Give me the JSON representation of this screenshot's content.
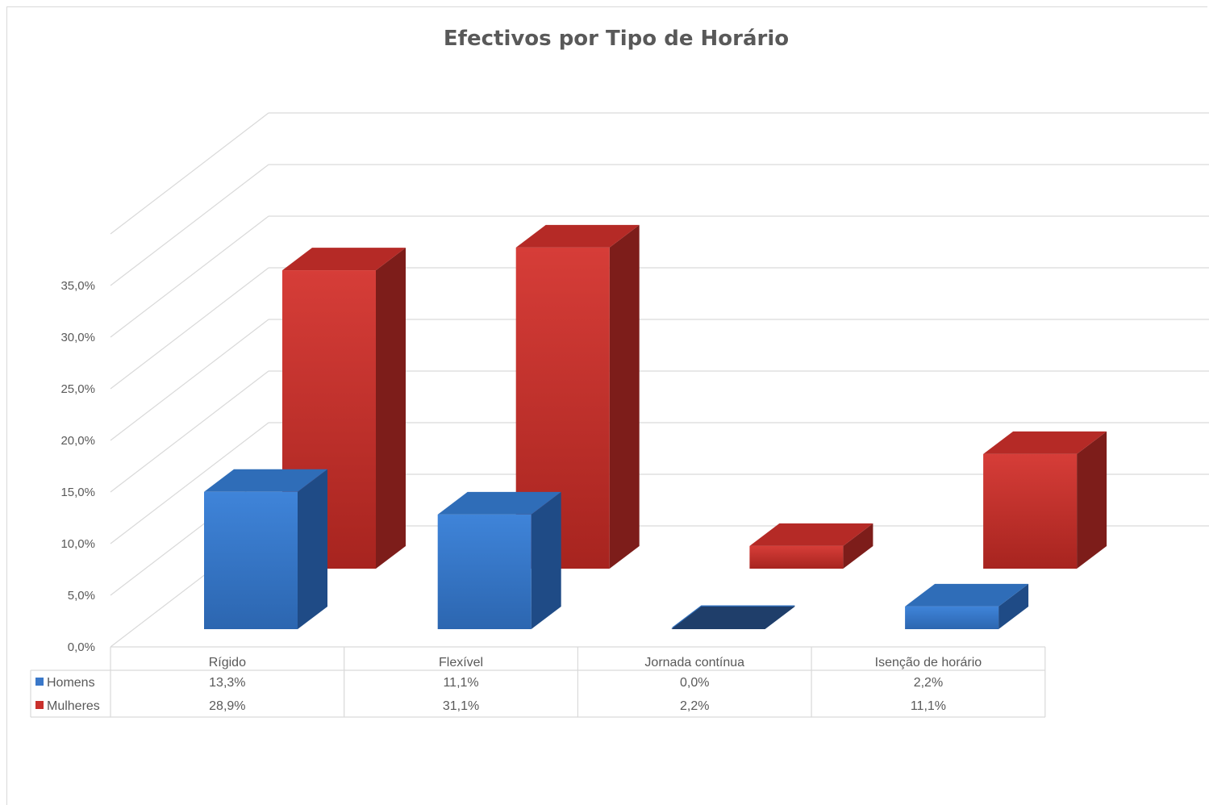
{
  "chart_data": {
    "type": "bar",
    "style": "3d-clustered-column",
    "title": "Efectivos por Tipo de Horário",
    "categories": [
      "Rígido",
      "Flexível",
      "Jornada contínua",
      "Isenção de horário"
    ],
    "series": [
      {
        "name": "Homens",
        "values": [
          13.3,
          11.1,
          0.0,
          2.2
        ],
        "labels": [
          "13,3%",
          "11,1%",
          "0,0%",
          "2,2%"
        ],
        "color": "#3a78c9"
      },
      {
        "name": "Mulheres",
        "values": [
          28.9,
          31.1,
          2.2,
          11.1
        ],
        "labels": [
          "28,9%",
          "31,1%",
          "2,2%",
          "11,1%"
        ],
        "color": "#c9302c"
      }
    ],
    "y_ticks": [
      "0,0%",
      "5,0%",
      "10,0%",
      "15,0%",
      "20,0%",
      "25,0%",
      "30,0%",
      "35,0%"
    ],
    "ylim": [
      0,
      40
    ],
    "grid": true,
    "data_table": true
  }
}
